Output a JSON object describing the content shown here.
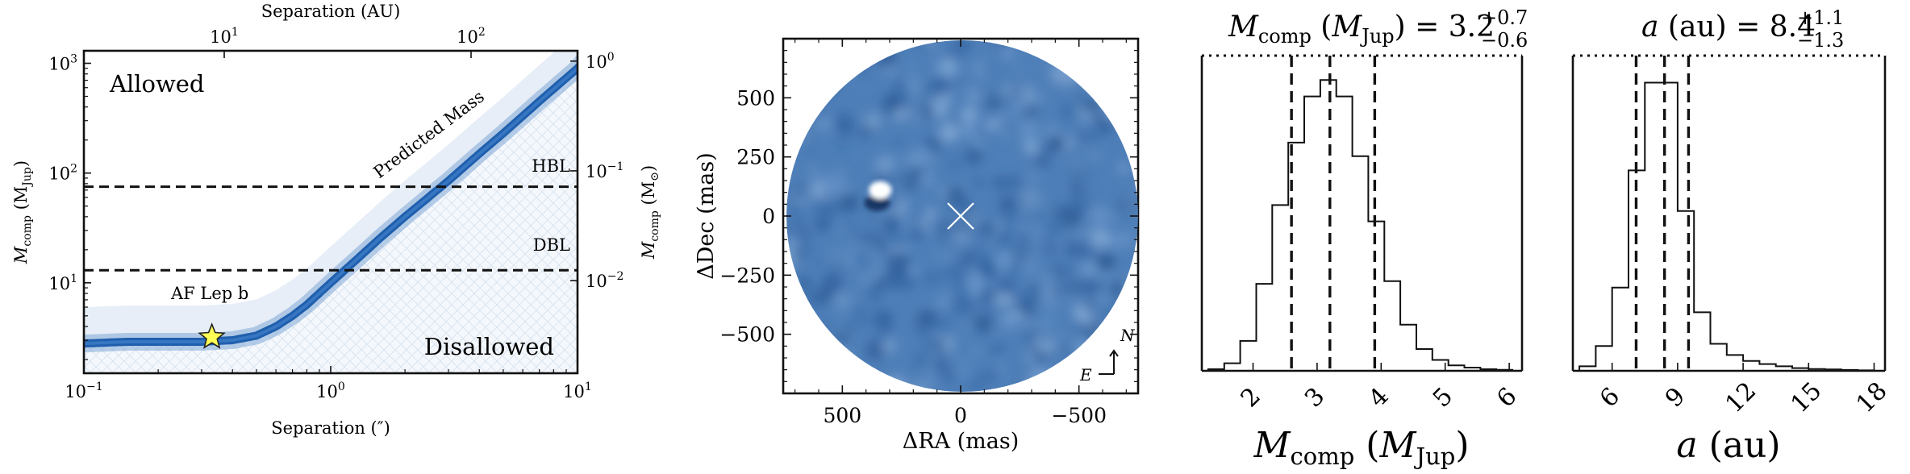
{
  "chart_data": [
    {
      "type": "heatmap",
      "xlabel": "Separation (″)",
      "xlabel_top": "Separation (AU)",
      "ylabel": "M_comp (M_Jup)",
      "ylabel_right": "M_comp (M_⊙)",
      "xscale": "log",
      "yscale": "log",
      "xlim": [
        0.1,
        10
      ],
      "ylim": [
        1.5,
        1300
      ],
      "x_ticks": [
        {
          "value": 0.1,
          "label": "10",
          "sup": "−1"
        },
        {
          "value": 1,
          "label": "10",
          "sup": "0"
        },
        {
          "value": 10,
          "label": "10",
          "sup": "1"
        }
      ],
      "y_ticks": [
        {
          "value": 10,
          "label": "10",
          "sup": "1"
        },
        {
          "value": 100,
          "label": "10",
          "sup": "2"
        },
        {
          "value": 1000,
          "label": "10",
          "sup": "3"
        }
      ],
      "top_ticks": [
        {
          "value": 10,
          "label": "10",
          "sup": "1"
        },
        {
          "value": 100,
          "label": "10",
          "sup": "2"
        }
      ],
      "right_ticks": [
        {
          "value": 0.01,
          "label": "10",
          "sup": "−2"
        },
        {
          "value": 0.1,
          "label": "10",
          "sup": "−1"
        },
        {
          "value": 1,
          "label": "10",
          "sup": "0"
        }
      ],
      "predicted_mass_curve": {
        "x": [
          0.1,
          0.15,
          0.2,
          0.3,
          0.4,
          0.5,
          0.6,
          0.7,
          0.8,
          1.0,
          1.3,
          1.6,
          2.0,
          3.0,
          4.0,
          5.0,
          7.0,
          10.0
        ],
        "y": [
          2.8,
          2.9,
          2.9,
          2.9,
          3.0,
          3.3,
          4.0,
          5.0,
          6.3,
          10.0,
          17.0,
          26.0,
          40.0,
          85.0,
          150.0,
          230.0,
          450.0,
          900.0
        ]
      },
      "hlines": [
        {
          "y": 75,
          "label": "HBL"
        },
        {
          "y": 13,
          "label": "DBL"
        }
      ],
      "annotations": [
        "Allowed",
        "Disallowed",
        "Predicted Mass"
      ],
      "target": {
        "name": "AF Lep b",
        "x": 0.33,
        "y": 3.2
      },
      "colors": {
        "allowed": "#2e8b3a",
        "disallowed": "#d36a6a",
        "band": "#1f5fae",
        "marker": "#ffff55"
      }
    },
    {
      "type": "image",
      "xlabel": "ΔRA (mas)",
      "ylabel": "ΔDec (mas)",
      "xlim": [
        750,
        -750
      ],
      "ylim": [
        -750,
        750
      ],
      "x_ticks": [
        "500",
        "0",
        "−500"
      ],
      "y_ticks": [
        "500",
        "250",
        "0",
        "−250",
        "−500"
      ],
      "source": {
        "dra": 340,
        "ddec": 110
      },
      "star_marker": {
        "dra": 0,
        "ddec": 0
      },
      "compass": {
        "north": "N",
        "east": "E"
      }
    },
    {
      "type": "histogram",
      "title_parts": {
        "lhs": "M",
        "lhs_sub": "comp",
        "paren": "M",
        "paren_sub": "Jup",
        "value": "3.2",
        "plus": "+0.7",
        "minus": "−0.6"
      },
      "xlabel_parts": {
        "main": "M",
        "sub": "comp",
        "paren": "M",
        "paren_sub": "Jup"
      },
      "xlim": [
        1.2,
        6.2
      ],
      "x_ticks": [
        2,
        3,
        4,
        5,
        6
      ],
      "bins": [
        1.3,
        1.55,
        1.8,
        2.05,
        2.3,
        2.55,
        2.8,
        3.05,
        3.3,
        3.55,
        3.8,
        4.05,
        4.3,
        4.55,
        4.8,
        5.05,
        5.3,
        5.55,
        5.8,
        6.05
      ],
      "counts": [
        3,
        14,
        55,
        160,
        305,
        420,
        505,
        535,
        505,
        395,
        275,
        165,
        85,
        40,
        20,
        10,
        6,
        3,
        2
      ],
      "ymax": 580,
      "vlines": [
        2.6,
        3.2,
        3.9
      ]
    },
    {
      "type": "histogram",
      "title_parts": {
        "lhs": "a",
        "paren": "au",
        "value": "8.4",
        "plus": "+1.1",
        "minus": "−1.3"
      },
      "xlabel_parts": {
        "main": "a",
        "paren": "au"
      },
      "xlim": [
        4.2,
        18.5
      ],
      "x_ticks": [
        6,
        9,
        12,
        15,
        18
      ],
      "bins": [
        4.5,
        5.25,
        6.0,
        6.75,
        7.5,
        8.25,
        9.0,
        9.75,
        10.5,
        11.25,
        12.0,
        12.75,
        13.5,
        14.25,
        15.0,
        15.75,
        16.5,
        17.25,
        18.0
      ],
      "counts": [
        10,
        55,
        185,
        445,
        640,
        640,
        355,
        130,
        60,
        35,
        22,
        15,
        10,
        6,
        4,
        3,
        2,
        1
      ],
      "ymax": 700,
      "vlines": [
        7.1,
        8.4,
        9.5
      ]
    }
  ]
}
